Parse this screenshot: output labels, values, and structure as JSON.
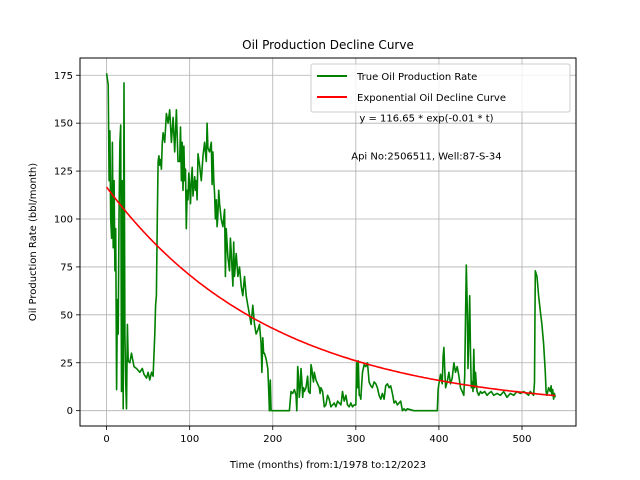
{
  "chart_data": {
    "type": "line",
    "title": "Oil Production Decline Curve",
    "xlabel": "Time (months) from:1/1978 to:12/2023",
    "ylabel": "Oil Production Rate (bbl/month)",
    "xlim": [
      -32,
      565
    ],
    "ylim": [
      -8,
      184
    ],
    "x_ticks": [
      0,
      100,
      200,
      300,
      400,
      500
    ],
    "y_ticks": [
      0,
      25,
      50,
      75,
      100,
      125,
      150,
      175
    ],
    "grid": true,
    "legend_position": "upper right",
    "annotations": [
      {
        "text": "y = 116.65 * exp(-0.01 * t)",
        "x": 385,
        "y": 151
      },
      {
        "text": "Api No:2506511, Well:87-S-34",
        "x": 385,
        "y": 131
      }
    ],
    "series": [
      {
        "name": "True Oil Production Rate",
        "color": "#008000",
        "kind": "line",
        "points": [
          [
            0,
            176
          ],
          [
            2,
            170
          ],
          [
            3,
            120
          ],
          [
            4,
            146
          ],
          [
            5,
            100
          ],
          [
            6,
            90
          ],
          [
            7,
            140
          ],
          [
            8,
            85
          ],
          [
            9,
            120
          ],
          [
            10,
            73
          ],
          [
            11,
            95
          ],
          [
            12,
            11
          ],
          [
            13,
            58
          ],
          [
            14,
            40
          ],
          [
            15,
            100
          ],
          [
            16,
            140
          ],
          [
            17,
            149
          ],
          [
            18,
            10
          ],
          [
            19,
            120
          ],
          [
            20,
            1
          ],
          [
            21,
            171
          ],
          [
            22,
            40
          ],
          [
            23,
            15
          ],
          [
            24,
            1
          ],
          [
            25,
            45
          ],
          [
            26,
            26
          ],
          [
            28,
            25
          ],
          [
            30,
            30
          ],
          [
            33,
            23
          ],
          [
            36,
            22
          ],
          [
            40,
            20
          ],
          [
            43,
            22
          ],
          [
            45,
            19
          ],
          [
            48,
            17
          ],
          [
            50,
            20
          ],
          [
            52,
            16
          ],
          [
            54,
            20
          ],
          [
            56,
            18
          ],
          [
            58,
            40
          ],
          [
            59,
            55
          ],
          [
            60,
            60
          ],
          [
            61,
            100
          ],
          [
            62,
            130
          ],
          [
            63,
            133
          ],
          [
            64,
            128
          ],
          [
            65,
            131
          ],
          [
            66,
            126
          ],
          [
            67,
            140
          ],
          [
            68,
            145
          ],
          [
            70,
            140
          ],
          [
            72,
            155
          ],
          [
            74,
            150
          ],
          [
            76,
            157
          ],
          [
            78,
            140
          ],
          [
            80,
            153
          ],
          [
            82,
            135
          ],
          [
            84,
            157
          ],
          [
            86,
            130
          ],
          [
            88,
            130
          ],
          [
            89,
            148
          ],
          [
            90,
            120
          ],
          [
            91,
            140
          ],
          [
            92,
            115
          ],
          [
            93,
            138
          ],
          [
            94,
            120
          ],
          [
            95,
            126
          ],
          [
            96,
            95
          ],
          [
            97,
            115
          ],
          [
            98,
            110
          ],
          [
            99,
            124
          ],
          [
            100,
            117
          ],
          [
            101,
            108
          ],
          [
            102,
            120
          ],
          [
            103,
            127
          ],
          [
            104,
            112
          ],
          [
            105,
            117
          ],
          [
            106,
            122
          ],
          [
            107,
            115
          ],
          [
            108,
            120
          ],
          [
            109,
            110
          ],
          [
            110,
            134
          ],
          [
            112,
            128
          ],
          [
            114,
            120
          ],
          [
            116,
            133
          ],
          [
            118,
            140
          ],
          [
            120,
            130
          ],
          [
            121,
            150
          ],
          [
            122,
            137
          ],
          [
            124,
            135
          ],
          [
            126,
            140
          ],
          [
            127,
            118
          ],
          [
            128,
            135
          ],
          [
            129,
            120
          ],
          [
            130,
            113
          ],
          [
            131,
            100
          ],
          [
            132,
            110
          ],
          [
            133,
            96
          ],
          [
            134,
            102
          ],
          [
            135,
            115
          ],
          [
            136,
            108
          ],
          [
            138,
            100
          ],
          [
            140,
            96
          ],
          [
            142,
            105
          ],
          [
            143,
            70
          ],
          [
            144,
            95
          ],
          [
            146,
            80
          ],
          [
            148,
            73
          ],
          [
            149,
            90
          ],
          [
            150,
            83
          ],
          [
            152,
            65
          ],
          [
            153,
            88
          ],
          [
            154,
            70
          ],
          [
            156,
            82
          ],
          [
            158,
            70
          ],
          [
            160,
            75
          ],
          [
            162,
            65
          ],
          [
            164,
            60
          ],
          [
            166,
            70
          ],
          [
            168,
            60
          ],
          [
            170,
            55
          ],
          [
            172,
            50
          ],
          [
            174,
            45
          ],
          [
            176,
            55
          ],
          [
            178,
            45
          ],
          [
            180,
            40
          ],
          [
            182,
            42
          ],
          [
            184,
            45
          ],
          [
            186,
            35
          ],
          [
            187,
            20
          ],
          [
            188,
            38
          ],
          [
            189,
            30
          ],
          [
            190,
            30
          ],
          [
            192,
            27
          ],
          [
            194,
            22
          ],
          [
            195,
            12
          ],
          [
            196,
            0
          ],
          [
            197,
            16
          ],
          [
            198,
            0
          ],
          [
            200,
            0
          ],
          [
            205,
            0
          ],
          [
            210,
            0
          ],
          [
            215,
            0
          ],
          [
            220,
            0
          ],
          [
            222,
            10
          ],
          [
            224,
            9
          ],
          [
            226,
            11
          ],
          [
            228,
            8
          ],
          [
            229,
            0
          ],
          [
            230,
            23
          ],
          [
            231,
            18
          ],
          [
            232,
            7
          ],
          [
            233,
            12
          ],
          [
            234,
            22
          ],
          [
            235,
            16
          ],
          [
            236,
            7
          ],
          [
            237,
            12
          ],
          [
            238,
            10
          ],
          [
            240,
            12
          ],
          [
            242,
            18
          ],
          [
            243,
            10
          ],
          [
            245,
            9
          ],
          [
            246,
            24
          ],
          [
            247,
            22
          ],
          [
            248,
            18
          ],
          [
            249,
            15
          ],
          [
            250,
            20
          ],
          [
            252,
            16
          ],
          [
            254,
            14
          ],
          [
            256,
            12
          ],
          [
            257,
            9
          ],
          [
            258,
            12
          ],
          [
            260,
            10
          ],
          [
            262,
            2
          ],
          [
            264,
            3
          ],
          [
            266,
            8
          ],
          [
            268,
            6
          ],
          [
            270,
            2
          ],
          [
            272,
            3
          ],
          [
            274,
            4
          ],
          [
            276,
            2
          ],
          [
            278,
            5
          ],
          [
            280,
            4
          ],
          [
            282,
            3
          ],
          [
            283,
            6
          ],
          [
            284,
            10
          ],
          [
            286,
            5
          ],
          [
            288,
            8
          ],
          [
            290,
            3
          ],
          [
            292,
            2
          ],
          [
            294,
            4
          ],
          [
            296,
            2
          ],
          [
            298,
            3
          ],
          [
            300,
            3
          ],
          [
            301,
            25
          ],
          [
            302,
            12
          ],
          [
            303,
            26
          ],
          [
            304,
            8
          ],
          [
            305,
            8
          ],
          [
            306,
            6
          ],
          [
            307,
            13
          ],
          [
            308,
            20
          ],
          [
            310,
            24
          ],
          [
            312,
            23
          ],
          [
            314,
            25
          ],
          [
            316,
            15
          ],
          [
            318,
            13
          ],
          [
            320,
            12
          ],
          [
            322,
            15
          ],
          [
            324,
            14
          ],
          [
            326,
            12
          ],
          [
            328,
            8
          ],
          [
            330,
            6
          ],
          [
            332,
            9
          ],
          [
            334,
            6
          ],
          [
            336,
            13
          ],
          [
            338,
            14
          ],
          [
            340,
            12
          ],
          [
            342,
            13
          ],
          [
            344,
            9
          ],
          [
            346,
            4
          ],
          [
            348,
            5
          ],
          [
            350,
            3
          ],
          [
            352,
            4
          ],
          [
            354,
            5
          ],
          [
            356,
            0
          ],
          [
            358,
            1
          ],
          [
            360,
            0
          ],
          [
            362,
            1
          ],
          [
            370,
            0
          ],
          [
            380,
            0
          ],
          [
            390,
            0
          ],
          [
            398,
            0
          ],
          [
            399,
            11
          ],
          [
            400,
            14
          ],
          [
            402,
            19
          ],
          [
            404,
            14
          ],
          [
            405,
            28
          ],
          [
            406,
            33
          ],
          [
            407,
            22
          ],
          [
            408,
            12
          ],
          [
            410,
            15
          ],
          [
            412,
            20
          ],
          [
            414,
            14
          ],
          [
            416,
            17
          ],
          [
            418,
            25
          ],
          [
            420,
            20
          ],
          [
            422,
            23
          ],
          [
            424,
            18
          ],
          [
            426,
            12
          ],
          [
            428,
            10
          ],
          [
            430,
            8
          ],
          [
            431,
            18
          ],
          [
            432,
            48
          ],
          [
            433,
            76
          ],
          [
            434,
            55
          ],
          [
            435,
            22
          ],
          [
            436,
            40
          ],
          [
            437,
            60
          ],
          [
            438,
            30
          ],
          [
            439,
            12
          ],
          [
            440,
            15
          ],
          [
            441,
            10
          ],
          [
            442,
            32
          ],
          [
            443,
            12
          ],
          [
            444,
            20
          ],
          [
            445,
            14
          ],
          [
            446,
            10
          ],
          [
            448,
            8
          ],
          [
            450,
            10
          ],
          [
            452,
            9
          ],
          [
            455,
            10
          ],
          [
            458,
            8
          ],
          [
            460,
            9
          ],
          [
            463,
            10
          ],
          [
            466,
            8
          ],
          [
            470,
            9
          ],
          [
            474,
            8
          ],
          [
            478,
            10
          ],
          [
            482,
            7
          ],
          [
            486,
            9
          ],
          [
            490,
            8
          ],
          [
            494,
            10
          ],
          [
            498,
            9
          ],
          [
            502,
            10
          ],
          [
            505,
            9
          ],
          [
            508,
            8
          ],
          [
            510,
            10
          ],
          [
            512,
            9
          ],
          [
            514,
            8
          ],
          [
            515,
            15
          ],
          [
            516,
            73
          ],
          [
            518,
            70
          ],
          [
            520,
            60
          ],
          [
            522,
            52
          ],
          [
            524,
            45
          ],
          [
            526,
            35
          ],
          [
            528,
            20
          ],
          [
            529,
            10
          ],
          [
            530,
            8
          ],
          [
            532,
            12
          ],
          [
            534,
            10
          ],
          [
            535,
            13
          ],
          [
            536,
            8
          ],
          [
            537,
            11
          ],
          [
            538,
            6
          ],
          [
            539,
            9
          ],
          [
            540,
            7
          ]
        ]
      },
      {
        "name": "Exponential Oil Decline Curve",
        "color": "#ff0000",
        "kind": "function",
        "a": 116.65,
        "b": 0.005,
        "x_range": [
          0,
          540
        ]
      }
    ]
  }
}
